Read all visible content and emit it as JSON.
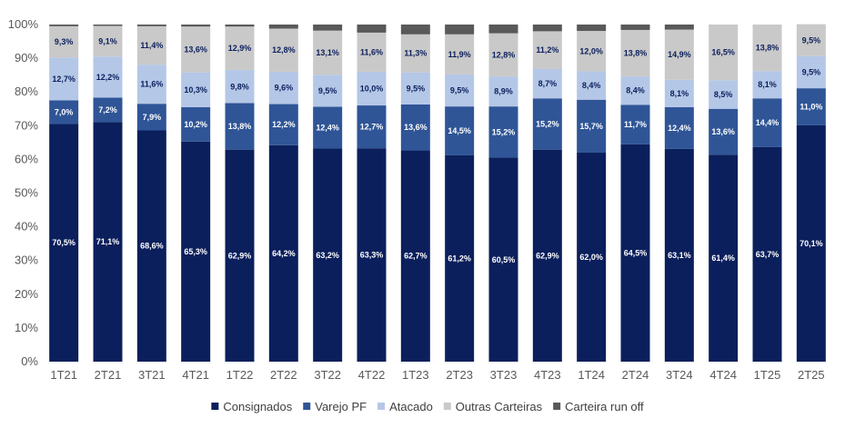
{
  "chart_data": {
    "type": "bar",
    "stacked": true,
    "percent_stacked": true,
    "title": "",
    "xlabel": "",
    "ylabel": "",
    "ylim": [
      0,
      100
    ],
    "y_ticks": [
      "0%",
      "10%",
      "20%",
      "30%",
      "40%",
      "50%",
      "60%",
      "70%",
      "80%",
      "90%",
      "100%"
    ],
    "grid": false,
    "legend_position": "bottom",
    "categories": [
      "1T21",
      "2T21",
      "3T21",
      "4T21",
      "1T22",
      "2T22",
      "3T22",
      "4T22",
      "1T23",
      "2T23",
      "3T23",
      "4T23",
      "1T24",
      "2T24",
      "3T24",
      "4T24",
      "1T25",
      "2T25"
    ],
    "series": [
      {
        "name": "Consignados",
        "color": "#0b1f5c",
        "label_color": "#ffffff",
        "values": [
          70.5,
          71.1,
          68.6,
          65.3,
          62.9,
          64.2,
          63.2,
          63.3,
          62.7,
          61.2,
          60.5,
          62.9,
          62.0,
          64.5,
          63.1,
          61.4,
          63.7,
          70.1
        ],
        "labels": [
          "70,5%",
          "71,1%",
          "68,6%",
          "65,3%",
          "62,9%",
          "64,2%",
          "63,2%",
          "63,3%",
          "62,7%",
          "61,2%",
          "60,5%",
          "62,9%",
          "62,0%",
          "64,5%",
          "63,1%",
          "61,4%",
          "63,7%",
          "70,1%"
        ]
      },
      {
        "name": "Varejo PF",
        "color": "#2f5597",
        "label_color": "#ffffff",
        "values": [
          7.0,
          7.2,
          7.9,
          10.2,
          13.8,
          12.2,
          12.4,
          12.7,
          13.6,
          14.5,
          15.2,
          15.2,
          15.7,
          11.7,
          12.4,
          13.6,
          14.4,
          11.0
        ],
        "labels": [
          "7,0%",
          "7,2%",
          "7,9%",
          "10,2%",
          "13,8%",
          "12,2%",
          "12,4%",
          "12,7%",
          "13,6%",
          "14,5%",
          "15,2%",
          "15,2%",
          "15,7%",
          "11,7%",
          "12,4%",
          "13,6%",
          "14,4%",
          "11,0%"
        ]
      },
      {
        "name": "Atacado",
        "color": "#b4c7e7",
        "label_color": "#0b1f5c",
        "values": [
          12.7,
          12.2,
          11.6,
          10.3,
          9.8,
          9.6,
          9.5,
          10.0,
          9.5,
          9.5,
          8.9,
          8.7,
          8.4,
          8.4,
          8.1,
          8.5,
          8.1,
          9.5
        ],
        "labels": [
          "12,7%",
          "12,2%",
          "11,6%",
          "10,3%",
          "9,8%",
          "9,6%",
          "9,5%",
          "10,0%",
          "9,5%",
          "9,5%",
          "8,9%",
          "8,7%",
          "8,4%",
          "8,4%",
          "8,1%",
          "8,5%",
          "8,1%",
          "9,5%"
        ]
      },
      {
        "name": "Outras Carteiras",
        "color": "#c9c9c9",
        "label_color": "#0b1f5c",
        "values": [
          9.3,
          9.1,
          11.4,
          13.6,
          12.9,
          12.8,
          13.1,
          11.6,
          11.3,
          11.9,
          12.8,
          11.2,
          12.0,
          13.8,
          14.9,
          16.5,
          13.8,
          9.5
        ],
        "labels": [
          "9,3%",
          "9,1%",
          "11,4%",
          "13,6%",
          "12,9%",
          "12,8%",
          "13,1%",
          "11,6%",
          "11,3%",
          "11,9%",
          "12,8%",
          "11,2%",
          "12,0%",
          "13,8%",
          "14,9%",
          "16,5%",
          "13,8%",
          "9,5%"
        ]
      },
      {
        "name": "Carteira run off",
        "color": "#595959",
        "label_color": "#ffffff",
        "values": [
          0.5,
          0.4,
          0.5,
          0.6,
          0.6,
          1.2,
          1.8,
          2.4,
          2.9,
          2.9,
          2.6,
          2.0,
          1.9,
          1.6,
          1.5,
          0.0,
          0.0,
          0.0
        ],
        "labels": []
      }
    ]
  }
}
